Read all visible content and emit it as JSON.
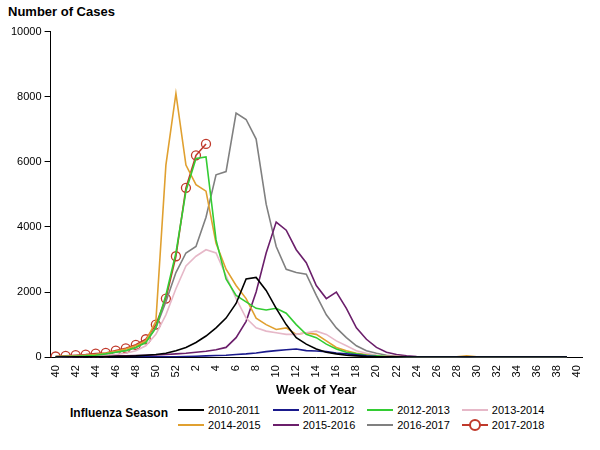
{
  "chart_data": {
    "type": "line",
    "y_label": "Number of Cases",
    "x_label": "Week of Year",
    "legend_title": "Influenza Season",
    "legend": "bottom",
    "grid": false,
    "ylim": [
      0,
      10000
    ],
    "yticks": [
      0,
      2000,
      4000,
      6000,
      8000,
      10000
    ],
    "categories": [
      "40",
      null,
      "42",
      null,
      "44",
      null,
      "46",
      null,
      "48",
      null,
      "50",
      null,
      "52",
      null,
      "2",
      null,
      "4",
      null,
      "6",
      null,
      "8",
      null,
      "10",
      null,
      "12",
      null,
      "14",
      null,
      "16",
      null,
      "18",
      null,
      "20",
      null,
      "22",
      null,
      "24",
      null,
      "26",
      null,
      "28",
      null,
      "30",
      null,
      "32",
      null,
      "34",
      null,
      "36",
      null,
      "38",
      null,
      "40"
    ],
    "series": [
      {
        "name": "2010-2011",
        "color": "#000000",
        "marker": "none",
        "values": [
          5,
          5,
          10,
          10,
          15,
          20,
          25,
          30,
          40,
          60,
          80,
          120,
          200,
          300,
          450,
          650,
          900,
          1200,
          1650,
          2400,
          2450,
          2050,
          1500,
          1000,
          600,
          400,
          250,
          150,
          100,
          60,
          40,
          20,
          10,
          10,
          10,
          5,
          5,
          5,
          5,
          5,
          5,
          5,
          5,
          5,
          5,
          5,
          5,
          5,
          5,
          5,
          5,
          5,
          null
        ]
      },
      {
        "name": "2011-2012",
        "color": "#1a1a8c",
        "marker": "none",
        "values": [
          5,
          5,
          5,
          5,
          5,
          5,
          10,
          10,
          10,
          10,
          10,
          15,
          15,
          20,
          30,
          40,
          50,
          60,
          80,
          100,
          130,
          170,
          200,
          230,
          250,
          200,
          190,
          170,
          130,
          100,
          70,
          40,
          20,
          10,
          10,
          5,
          5,
          5,
          5,
          5,
          5,
          5,
          5,
          5,
          5,
          5,
          5,
          5,
          5,
          5,
          5,
          5,
          null
        ]
      },
      {
        "name": "2012-2013",
        "color": "#33cc33",
        "marker": "none",
        "values": [
          10,
          20,
          30,
          40,
          60,
          100,
          150,
          200,
          300,
          450,
          900,
          1900,
          3200,
          5100,
          6100,
          6150,
          3600,
          2400,
          1900,
          1700,
          1500,
          1450,
          1500,
          1350,
          1000,
          700,
          600,
          400,
          250,
          150,
          100,
          60,
          40,
          20,
          10,
          10,
          5,
          5,
          5,
          5,
          5,
          5,
          5,
          5,
          5,
          5,
          5,
          5,
          5,
          5,
          5,
          5,
          null
        ]
      },
      {
        "name": "2013-2014",
        "color": "#e6b8c8",
        "marker": "none",
        "values": [
          10,
          10,
          20,
          30,
          40,
          60,
          80,
          120,
          200,
          350,
          700,
          1300,
          2100,
          2800,
          3100,
          3300,
          3200,
          2500,
          1800,
          1200,
          900,
          800,
          750,
          700,
          700,
          750,
          800,
          700,
          500,
          350,
          200,
          120,
          60,
          30,
          20,
          10,
          5,
          5,
          5,
          5,
          5,
          5,
          5,
          5,
          5,
          5,
          5,
          5,
          5,
          5,
          5,
          5,
          null
        ]
      },
      {
        "name": "2014-2015",
        "color": "#e0a030",
        "marker": "none",
        "values": [
          20,
          30,
          40,
          60,
          80,
          120,
          180,
          250,
          350,
          500,
          1100,
          5900,
          8100,
          5900,
          5300,
          5100,
          3500,
          2700,
          2200,
          1800,
          1200,
          1000,
          850,
          900,
          700,
          750,
          700,
          500,
          300,
          200,
          120,
          80,
          50,
          30,
          20,
          10,
          10,
          10,
          10,
          10,
          10,
          40,
          10,
          10,
          5,
          5,
          5,
          5,
          5,
          5,
          5,
          5,
          null
        ]
      },
      {
        "name": "2015-2016",
        "color": "#6b1f6b",
        "marker": "none",
        "values": [
          10,
          10,
          10,
          20,
          20,
          30,
          40,
          40,
          50,
          60,
          70,
          80,
          100,
          120,
          150,
          180,
          230,
          300,
          600,
          1100,
          2000,
          3200,
          4150,
          3900,
          3300,
          2900,
          2200,
          1800,
          2000,
          1500,
          900,
          550,
          300,
          150,
          80,
          40,
          20,
          10,
          5,
          5,
          5,
          5,
          5,
          5,
          5,
          5,
          5,
          5,
          5,
          5,
          5,
          5,
          null
        ]
      },
      {
        "name": "2016-2017",
        "color": "#808080",
        "marker": "none",
        "values": [
          20,
          30,
          40,
          60,
          80,
          100,
          150,
          200,
          300,
          500,
          900,
          1700,
          2600,
          3200,
          3400,
          4300,
          5600,
          5700,
          7500,
          7300,
          6700,
          4700,
          3400,
          2700,
          2600,
          2550,
          1900,
          1300,
          900,
          600,
          350,
          200,
          120,
          60,
          30,
          15,
          10,
          5,
          5,
          5,
          5,
          5,
          5,
          5,
          5,
          5,
          5,
          5,
          5,
          5,
          5,
          5,
          null
        ]
      },
      {
        "name": "2017-2018",
        "color": "#c0392b",
        "marker": "circle",
        "values": [
          20,
          40,
          60,
          80,
          110,
          130,
          200,
          270,
          380,
          550,
          1000,
          1800,
          3100,
          5200,
          6200,
          6550,
          null,
          null,
          null,
          null,
          null,
          null,
          null,
          null,
          null,
          null,
          null,
          null,
          null,
          null,
          null,
          null,
          null,
          null,
          null,
          null,
          null,
          null,
          null,
          null,
          null,
          null,
          null,
          null,
          null,
          null,
          null,
          null,
          null,
          null,
          null,
          null,
          null
        ]
      }
    ]
  }
}
